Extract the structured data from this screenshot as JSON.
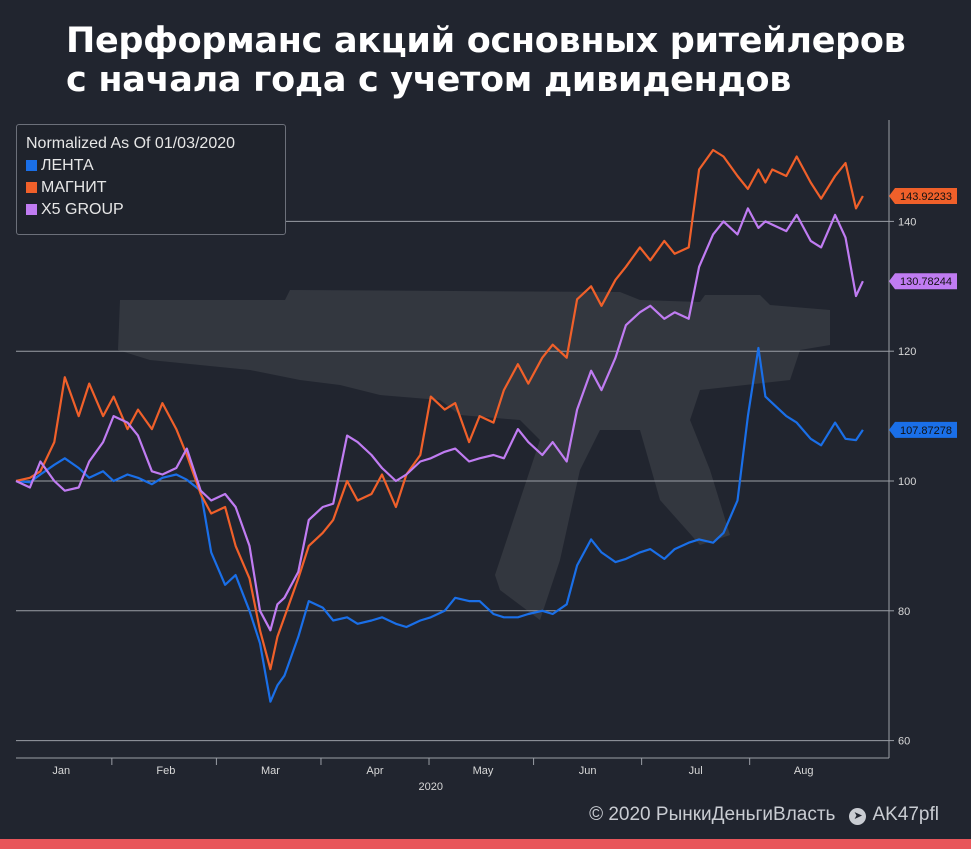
{
  "title": "Перформанс акций основных ритейлеров с начала года с учетом дивидендов",
  "footer": {
    "copyright": "© 2020  РынкиДеньгиВласть",
    "telegram_icon": "telegram-icon",
    "telegram": "AK47pfl"
  },
  "colors": {
    "background": "#21252f",
    "accent_bar": "#e8555a",
    "grid": "#9a9ea6",
    "axis_text": "#d8d8d8"
  },
  "watermark": "rifle-silhouette",
  "chart_data": {
    "type": "line",
    "title": "",
    "legend_title": "Normalized As Of 01/03/2020",
    "legend_position": "top-left",
    "xlabel": "2020",
    "ylabel": "",
    "x_domain": [
      "2020-01-03",
      "2020-08-29"
    ],
    "ylim": [
      58,
      158
    ],
    "y_ticks": [
      60,
      80,
      100,
      120,
      140
    ],
    "x_ticks": [
      {
        "label": "Jan",
        "date": "2020-01-16"
      },
      {
        "label": "Feb",
        "date": "2020-02-15"
      },
      {
        "label": "Mar",
        "date": "2020-03-16"
      },
      {
        "label": "Apr",
        "date": "2020-04-15"
      },
      {
        "label": "May",
        "date": "2020-05-16"
      },
      {
        "label": "Jun",
        "date": "2020-06-15"
      },
      {
        "label": "Jul",
        "date": "2020-07-16"
      },
      {
        "label": "Aug",
        "date": "2020-08-16"
      }
    ],
    "grid": true,
    "series": [
      {
        "name": "ЛЕНТА",
        "color": "#1a6fe8",
        "last_value": "107.87278",
        "points": [
          [
            "2020-01-03",
            100
          ],
          [
            "2020-01-07",
            99.8
          ],
          [
            "2020-01-10",
            101
          ],
          [
            "2020-01-14",
            102.5
          ],
          [
            "2020-01-17",
            103.5
          ],
          [
            "2020-01-21",
            102
          ],
          [
            "2020-01-24",
            100.5
          ],
          [
            "2020-01-28",
            101.5
          ],
          [
            "2020-01-31",
            100
          ],
          [
            "2020-02-04",
            101
          ],
          [
            "2020-02-07",
            100.5
          ],
          [
            "2020-02-11",
            99.5
          ],
          [
            "2020-02-14",
            100.5
          ],
          [
            "2020-02-18",
            101
          ],
          [
            "2020-02-21",
            100.2
          ],
          [
            "2020-02-25",
            98.5
          ],
          [
            "2020-02-28",
            89
          ],
          [
            "2020-03-03",
            84
          ],
          [
            "2020-03-06",
            85.5
          ],
          [
            "2020-03-10",
            80
          ],
          [
            "2020-03-13",
            75
          ],
          [
            "2020-03-16",
            66
          ],
          [
            "2020-03-18",
            68.5
          ],
          [
            "2020-03-20",
            70
          ],
          [
            "2020-03-24",
            76
          ],
          [
            "2020-03-27",
            81.5
          ],
          [
            "2020-03-31",
            80.5
          ],
          [
            "2020-04-03",
            78.5
          ],
          [
            "2020-04-07",
            79
          ],
          [
            "2020-04-10",
            78
          ],
          [
            "2020-04-14",
            78.5
          ],
          [
            "2020-04-17",
            79
          ],
          [
            "2020-04-21",
            78
          ],
          [
            "2020-04-24",
            77.5
          ],
          [
            "2020-04-28",
            78.5
          ],
          [
            "2020-05-01",
            79
          ],
          [
            "2020-05-05",
            80
          ],
          [
            "2020-05-08",
            82
          ],
          [
            "2020-05-12",
            81.5
          ],
          [
            "2020-05-15",
            81.5
          ],
          [
            "2020-05-19",
            79.5
          ],
          [
            "2020-05-22",
            79
          ],
          [
            "2020-05-26",
            79
          ],
          [
            "2020-05-29",
            79.5
          ],
          [
            "2020-06-02",
            80
          ],
          [
            "2020-06-05",
            79.5
          ],
          [
            "2020-06-09",
            81
          ],
          [
            "2020-06-12",
            87
          ],
          [
            "2020-06-16",
            91
          ],
          [
            "2020-06-19",
            89
          ],
          [
            "2020-06-23",
            87.5
          ],
          [
            "2020-06-26",
            88
          ],
          [
            "2020-06-30",
            89
          ],
          [
            "2020-07-03",
            89.5
          ],
          [
            "2020-07-07",
            88
          ],
          [
            "2020-07-10",
            89.5
          ],
          [
            "2020-07-14",
            90.5
          ],
          [
            "2020-07-17",
            91
          ],
          [
            "2020-07-21",
            90.5
          ],
          [
            "2020-07-24",
            92
          ],
          [
            "2020-07-28",
            97
          ],
          [
            "2020-07-31",
            110
          ],
          [
            "2020-08-03",
            120.5
          ],
          [
            "2020-08-05",
            113
          ],
          [
            "2020-08-07",
            112
          ],
          [
            "2020-08-11",
            110
          ],
          [
            "2020-08-14",
            109
          ],
          [
            "2020-08-18",
            106.5
          ],
          [
            "2020-08-21",
            105.5
          ],
          [
            "2020-08-25",
            109
          ],
          [
            "2020-08-28",
            106.5
          ],
          [
            "2020-08-31",
            106.3
          ],
          [
            "2020-09-02",
            107.87
          ]
        ]
      },
      {
        "name": "МАГНИТ",
        "color": "#f0602a",
        "last_value": "143.92233",
        "points": [
          [
            "2020-01-03",
            100
          ],
          [
            "2020-01-07",
            100.5
          ],
          [
            "2020-01-10",
            101.5
          ],
          [
            "2020-01-14",
            106
          ],
          [
            "2020-01-17",
            116
          ],
          [
            "2020-01-21",
            110
          ],
          [
            "2020-01-24",
            115
          ],
          [
            "2020-01-28",
            110
          ],
          [
            "2020-01-31",
            113
          ],
          [
            "2020-02-04",
            108
          ],
          [
            "2020-02-07",
            111
          ],
          [
            "2020-02-11",
            108
          ],
          [
            "2020-02-14",
            112
          ],
          [
            "2020-02-18",
            108
          ],
          [
            "2020-02-21",
            104
          ],
          [
            "2020-02-25",
            98
          ],
          [
            "2020-02-28",
            95
          ],
          [
            "2020-03-03",
            96
          ],
          [
            "2020-03-06",
            90
          ],
          [
            "2020-03-10",
            85
          ],
          [
            "2020-03-13",
            77
          ],
          [
            "2020-03-16",
            71
          ],
          [
            "2020-03-18",
            76
          ],
          [
            "2020-03-20",
            79
          ],
          [
            "2020-03-24",
            85
          ],
          [
            "2020-03-27",
            90
          ],
          [
            "2020-03-31",
            92
          ],
          [
            "2020-04-03",
            94
          ],
          [
            "2020-04-07",
            100
          ],
          [
            "2020-04-10",
            97
          ],
          [
            "2020-04-14",
            98
          ],
          [
            "2020-04-17",
            101
          ],
          [
            "2020-04-21",
            96
          ],
          [
            "2020-04-24",
            101
          ],
          [
            "2020-04-28",
            104
          ],
          [
            "2020-05-01",
            113
          ],
          [
            "2020-05-05",
            111
          ],
          [
            "2020-05-08",
            112
          ],
          [
            "2020-05-12",
            106
          ],
          [
            "2020-05-15",
            110
          ],
          [
            "2020-05-19",
            109
          ],
          [
            "2020-05-22",
            114
          ],
          [
            "2020-05-26",
            118
          ],
          [
            "2020-05-29",
            115
          ],
          [
            "2020-06-02",
            119
          ],
          [
            "2020-06-05",
            121
          ],
          [
            "2020-06-09",
            119
          ],
          [
            "2020-06-12",
            128
          ],
          [
            "2020-06-16",
            130
          ],
          [
            "2020-06-19",
            127
          ],
          [
            "2020-06-23",
            131
          ],
          [
            "2020-06-26",
            133
          ],
          [
            "2020-06-30",
            136
          ],
          [
            "2020-07-03",
            134
          ],
          [
            "2020-07-07",
            137
          ],
          [
            "2020-07-10",
            135
          ],
          [
            "2020-07-14",
            136
          ],
          [
            "2020-07-17",
            148
          ],
          [
            "2020-07-21",
            151
          ],
          [
            "2020-07-24",
            150
          ],
          [
            "2020-07-28",
            147
          ],
          [
            "2020-07-31",
            145
          ],
          [
            "2020-08-03",
            148
          ],
          [
            "2020-08-05",
            146
          ],
          [
            "2020-08-07",
            148
          ],
          [
            "2020-08-11",
            147
          ],
          [
            "2020-08-14",
            150
          ],
          [
            "2020-08-18",
            146
          ],
          [
            "2020-08-21",
            143.5
          ],
          [
            "2020-08-25",
            147
          ],
          [
            "2020-08-28",
            149
          ],
          [
            "2020-08-31",
            142
          ],
          [
            "2020-09-02",
            143.92
          ]
        ]
      },
      {
        "name": "X5 GROUP",
        "color": "#c07cf2",
        "last_value": "130.78244",
        "points": [
          [
            "2020-01-03",
            100
          ],
          [
            "2020-01-07",
            99
          ],
          [
            "2020-01-10",
            103
          ],
          [
            "2020-01-14",
            100
          ],
          [
            "2020-01-17",
            98.5
          ],
          [
            "2020-01-21",
            99
          ],
          [
            "2020-01-24",
            103
          ],
          [
            "2020-01-28",
            106
          ],
          [
            "2020-01-31",
            110
          ],
          [
            "2020-02-04",
            109
          ],
          [
            "2020-02-07",
            107
          ],
          [
            "2020-02-11",
            101.5
          ],
          [
            "2020-02-14",
            101
          ],
          [
            "2020-02-18",
            102
          ],
          [
            "2020-02-21",
            105
          ],
          [
            "2020-02-25",
            98.5
          ],
          [
            "2020-02-28",
            97
          ],
          [
            "2020-03-03",
            98
          ],
          [
            "2020-03-06",
            96
          ],
          [
            "2020-03-10",
            90
          ],
          [
            "2020-03-13",
            80
          ],
          [
            "2020-03-16",
            77
          ],
          [
            "2020-03-18",
            81
          ],
          [
            "2020-03-20",
            82
          ],
          [
            "2020-03-24",
            86
          ],
          [
            "2020-03-27",
            94
          ],
          [
            "2020-03-31",
            96
          ],
          [
            "2020-04-03",
            96.5
          ],
          [
            "2020-04-07",
            107
          ],
          [
            "2020-04-10",
            106
          ],
          [
            "2020-04-14",
            104
          ],
          [
            "2020-04-17",
            102
          ],
          [
            "2020-04-21",
            100
          ],
          [
            "2020-04-24",
            101
          ],
          [
            "2020-04-28",
            103
          ],
          [
            "2020-05-01",
            103.5
          ],
          [
            "2020-05-05",
            104.5
          ],
          [
            "2020-05-08",
            105
          ],
          [
            "2020-05-12",
            103
          ],
          [
            "2020-05-15",
            103.5
          ],
          [
            "2020-05-19",
            104
          ],
          [
            "2020-05-22",
            103.5
          ],
          [
            "2020-05-26",
            108
          ],
          [
            "2020-05-29",
            106
          ],
          [
            "2020-06-02",
            104
          ],
          [
            "2020-06-05",
            106
          ],
          [
            "2020-06-09",
            103
          ],
          [
            "2020-06-12",
            111
          ],
          [
            "2020-06-16",
            117
          ],
          [
            "2020-06-19",
            114
          ],
          [
            "2020-06-23",
            119
          ],
          [
            "2020-06-26",
            124
          ],
          [
            "2020-06-30",
            126
          ],
          [
            "2020-07-03",
            127
          ],
          [
            "2020-07-07",
            125
          ],
          [
            "2020-07-10",
            126
          ],
          [
            "2020-07-14",
            125
          ],
          [
            "2020-07-17",
            133
          ],
          [
            "2020-07-21",
            138
          ],
          [
            "2020-07-24",
            140
          ],
          [
            "2020-07-28",
            138
          ],
          [
            "2020-07-31",
            142
          ],
          [
            "2020-08-03",
            139
          ],
          [
            "2020-08-05",
            140
          ],
          [
            "2020-08-07",
            139.5
          ],
          [
            "2020-08-11",
            138.5
          ],
          [
            "2020-08-14",
            141
          ],
          [
            "2020-08-18",
            137
          ],
          [
            "2020-08-21",
            136
          ],
          [
            "2020-08-25",
            141
          ],
          [
            "2020-08-28",
            137.5
          ],
          [
            "2020-08-31",
            128.5
          ],
          [
            "2020-09-02",
            130.78
          ]
        ]
      }
    ]
  }
}
